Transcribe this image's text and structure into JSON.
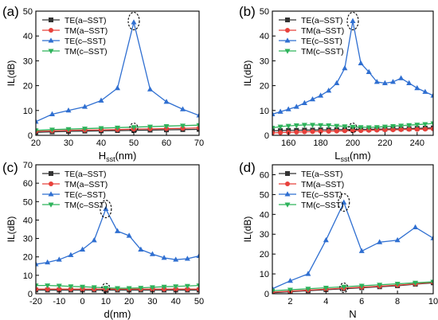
{
  "chart_data": [
    {
      "type": "line",
      "panel_label": "(a)",
      "xlabel": "H",
      "xlabel_sub": "sst",
      "xlabel_unit": "(nm)",
      "ylabel": "IL(dB)",
      "xlim": [
        20,
        70
      ],
      "ylim": [
        0,
        50
      ],
      "xticks": [
        20,
        30,
        40,
        50,
        60,
        70
      ],
      "yticks": [
        0,
        10,
        20,
        30,
        40,
        50
      ],
      "legend_position": "top-left",
      "series": [
        {
          "name": "TE(a–SST)",
          "color": "#333333",
          "marker": "square",
          "x": [
            20,
            25,
            30,
            35,
            40,
            45,
            50,
            55,
            60,
            65,
            70
          ],
          "y": [
            1.2,
            1.4,
            1.6,
            1.7,
            1.8,
            1.9,
            2.0,
            2.1,
            2.2,
            2.3,
            2.4
          ]
        },
        {
          "name": "TM(a–SST)",
          "color": "#e8413b",
          "marker": "circle",
          "x": [
            20,
            25,
            30,
            35,
            40,
            45,
            50,
            55,
            60,
            65,
            70
          ],
          "y": [
            1.6,
            1.8,
            2.0,
            2.1,
            2.2,
            2.3,
            2.5,
            2.6,
            2.7,
            2.8,
            3.0
          ]
        },
        {
          "name": "TE(c–SST)",
          "color": "#2f6fd1",
          "marker": "triangle-up",
          "x": [
            20,
            25,
            30,
            35,
            40,
            45,
            50,
            55,
            60,
            65,
            70
          ],
          "y": [
            5.5,
            8.5,
            10,
            11.5,
            14,
            19,
            45.5,
            18.5,
            13.5,
            10.5,
            8
          ]
        },
        {
          "name": "TM(c–SST)",
          "color": "#2eb35b",
          "marker": "triangle-down",
          "x": [
            20,
            25,
            30,
            35,
            40,
            45,
            50,
            55,
            60,
            65,
            70
          ],
          "y": [
            2.0,
            2.3,
            2.5,
            2.7,
            2.9,
            3.1,
            3.3,
            3.5,
            3.7,
            3.9,
            4.1
          ]
        }
      ],
      "highlights": [
        {
          "x": 50,
          "y": 46
        },
        {
          "x": 50,
          "y": 3
        }
      ]
    },
    {
      "type": "line",
      "panel_label": "(b)",
      "xlabel": "L",
      "xlabel_sub": "sst",
      "xlabel_unit": "(nm)",
      "ylabel": "IL(dB)",
      "xlim": [
        150,
        250
      ],
      "ylim": [
        0,
        50
      ],
      "xticks": [
        160,
        180,
        200,
        220,
        240
      ],
      "yticks": [
        0,
        10,
        20,
        30,
        40,
        50
      ],
      "legend_position": "top-left",
      "series": [
        {
          "name": "TE(a–SST)",
          "color": "#333333",
          "marker": "square",
          "x": [
            150,
            155,
            160,
            165,
            170,
            175,
            180,
            185,
            190,
            195,
            200,
            205,
            210,
            215,
            220,
            225,
            230,
            235,
            240,
            245,
            250
          ],
          "y": [
            1.8,
            1.9,
            2.0,
            2.0,
            2.1,
            2.1,
            2.2,
            2.2,
            2.3,
            2.3,
            2.3,
            2.4,
            2.4,
            2.5,
            2.5,
            2.6,
            2.6,
            2.7,
            2.8,
            2.9,
            3.0
          ]
        },
        {
          "name": "TM(a–SST)",
          "color": "#e8413b",
          "marker": "circle",
          "x": [
            150,
            155,
            160,
            165,
            170,
            175,
            180,
            185,
            190,
            195,
            200,
            205,
            210,
            215,
            220,
            225,
            230,
            235,
            240,
            245,
            250
          ],
          "y": [
            1.0,
            1.1,
            1.2,
            1.3,
            1.4,
            1.5,
            1.6,
            1.6,
            1.7,
            1.8,
            1.9,
            1.9,
            2.0,
            2.1,
            2.2,
            2.2,
            2.3,
            2.4,
            2.4,
            2.5,
            2.6
          ]
        },
        {
          "name": "TE(c–SST)",
          "color": "#2f6fd1",
          "marker": "triangle-up",
          "x": [
            150,
            155,
            160,
            165,
            170,
            175,
            180,
            185,
            190,
            195,
            200,
            205,
            210,
            215,
            220,
            225,
            230,
            235,
            240,
            245,
            250
          ],
          "y": [
            8.5,
            9.5,
            10.5,
            11.5,
            13,
            14.5,
            16,
            18,
            21,
            27,
            46,
            29,
            25.5,
            21.5,
            21,
            21.5,
            23,
            21,
            19,
            17.5,
            16
          ]
        },
        {
          "name": "TM(c–SST)",
          "color": "#2eb35b",
          "marker": "triangle-down",
          "x": [
            150,
            155,
            160,
            165,
            170,
            175,
            180,
            185,
            190,
            195,
            200,
            205,
            210,
            215,
            220,
            225,
            230,
            235,
            240,
            245,
            250
          ],
          "y": [
            3.0,
            3.5,
            3.8,
            4.0,
            4.2,
            4.2,
            4.1,
            4.0,
            3.8,
            3.6,
            3.4,
            3.3,
            3.2,
            3.3,
            3.5,
            3.7,
            3.9,
            4.1,
            4.3,
            4.5,
            4.8
          ]
        }
      ],
      "highlights": [
        {
          "x": 200,
          "y": 46
        },
        {
          "x": 200,
          "y": 3
        }
      ]
    },
    {
      "type": "line",
      "panel_label": "(c)",
      "xlabel": "d(nm)",
      "xlabel_sub": "",
      "xlabel_unit": "",
      "ylabel": "IL(dB)",
      "xlim": [
        -20,
        50
      ],
      "ylim": [
        0,
        70
      ],
      "xticks": [
        -20,
        -10,
        0,
        10,
        20,
        30,
        40,
        50
      ],
      "yticks": [
        0,
        10,
        20,
        30,
        40,
        50,
        60,
        70
      ],
      "legend_position": "top-left",
      "series": [
        {
          "name": "TE(a–SST)",
          "color": "#333333",
          "marker": "square",
          "x": [
            -20,
            -15,
            -10,
            -5,
            0,
            5,
            10,
            15,
            20,
            25,
            30,
            35,
            40,
            45,
            50
          ],
          "y": [
            2.0,
            2.0,
            2.0,
            2.0,
            2.0,
            2.0,
            2.0,
            2.0,
            2.0,
            2.0,
            2.0,
            2.0,
            2.0,
            2.0,
            2.0
          ]
        },
        {
          "name": "TM(a–SST)",
          "color": "#e8413b",
          "marker": "circle",
          "x": [
            -20,
            -15,
            -10,
            -5,
            0,
            5,
            10,
            15,
            20,
            25,
            30,
            35,
            40,
            45,
            50
          ],
          "y": [
            2.5,
            2.5,
            2.5,
            2.5,
            2.5,
            2.5,
            2.5,
            2.5,
            2.5,
            2.5,
            2.5,
            2.5,
            2.5,
            2.5,
            2.5
          ]
        },
        {
          "name": "TE(c–SST)",
          "color": "#2f6fd1",
          "marker": "triangle-up",
          "x": [
            -20,
            -15,
            -10,
            -5,
            0,
            5,
            10,
            15,
            20,
            25,
            30,
            35,
            40,
            45,
            50
          ],
          "y": [
            16,
            17,
            18.5,
            21,
            24,
            29,
            46,
            34,
            31.5,
            24,
            21.5,
            19.5,
            18.5,
            19,
            20.5
          ]
        },
        {
          "name": "TM(c–SST)",
          "color": "#2eb35b",
          "marker": "triangle-down",
          "x": [
            -20,
            -15,
            -10,
            -5,
            0,
            5,
            10,
            15,
            20,
            25,
            30,
            35,
            40,
            45,
            50
          ],
          "y": [
            4.5,
            4.5,
            4.3,
            4.0,
            3.8,
            3.5,
            3.2,
            3.0,
            3.0,
            3.2,
            3.5,
            3.8,
            4.0,
            4.2,
            4.5
          ]
        }
      ],
      "highlights": [
        {
          "x": 10,
          "y": 46
        },
        {
          "x": 10,
          "y": 3
        }
      ]
    },
    {
      "type": "line",
      "panel_label": "(d)",
      "xlabel": "N",
      "xlabel_sub": "",
      "xlabel_unit": "",
      "ylabel": "IL(dB)",
      "xlim": [
        1,
        10
      ],
      "ylim": [
        0,
        65
      ],
      "xticks": [
        2,
        4,
        6,
        8,
        10
      ],
      "yticks": [
        0,
        10,
        20,
        30,
        40,
        50,
        60
      ],
      "legend_position": "top-left",
      "series": [
        {
          "name": "TE(a–SST)",
          "color": "#333333",
          "marker": "square",
          "x": [
            1,
            2,
            3,
            4,
            5,
            6,
            7,
            8,
            9,
            10
          ],
          "y": [
            0.5,
            1.0,
            1.5,
            2.0,
            2.5,
            3.0,
            3.5,
            4.0,
            4.8,
            5.5
          ]
        },
        {
          "name": "TM(a–SST)",
          "color": "#e8413b",
          "marker": "circle",
          "x": [
            1,
            2,
            3,
            4,
            5,
            6,
            7,
            8,
            9,
            10
          ],
          "y": [
            0.8,
            1.3,
            1.8,
            2.3,
            2.8,
            3.3,
            3.8,
            4.3,
            5.0,
            5.8
          ]
        },
        {
          "name": "TE(c–SST)",
          "color": "#2f6fd1",
          "marker": "triangle-up",
          "x": [
            1,
            2,
            3,
            4,
            5,
            6,
            7,
            8,
            9,
            10
          ],
          "y": [
            2.5,
            6.5,
            10,
            27,
            46,
            21.5,
            26,
            27,
            33.5,
            28
          ]
        },
        {
          "name": "TM(c–SST)",
          "color": "#2eb35b",
          "marker": "triangle-down",
          "x": [
            1,
            2,
            3,
            4,
            5,
            6,
            7,
            8,
            9,
            10
          ],
          "y": [
            1.5,
            2.0,
            2.5,
            3.0,
            3.5,
            4.0,
            4.5,
            5.0,
            5.5,
            6.0
          ]
        }
      ],
      "highlights": [
        {
          "x": 5,
          "y": 46
        },
        {
          "x": 5,
          "y": 3
        }
      ]
    }
  ]
}
